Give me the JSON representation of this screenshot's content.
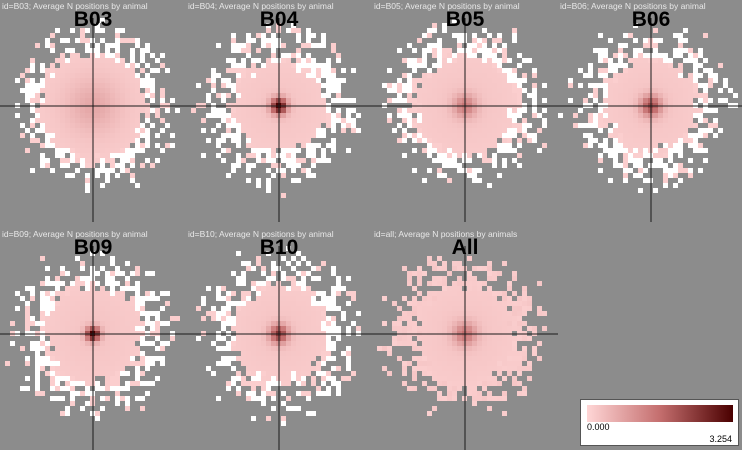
{
  "chart_data": {
    "type": "heatmap",
    "panels": [
      {
        "id": "B03",
        "caption": "id=B03; Average N positions by animal",
        "title": "B03",
        "peak": 0.45,
        "core_radius": 0.66,
        "sigma": 0.22,
        "white_ring": true
      },
      {
        "id": "B04",
        "caption": "id=B04; Average N positions by animal",
        "title": "B04",
        "peak": 3.1,
        "core_radius": 0.56,
        "sigma": 0.07,
        "white_ring": true
      },
      {
        "id": "B05",
        "caption": "id=B05; Average N positions by animal",
        "title": "B05",
        "peak": 1.2,
        "core_radius": 0.62,
        "sigma": 0.1,
        "white_ring": true
      },
      {
        "id": "B06",
        "caption": "id=B06; Average N positions by animal",
        "title": "B06",
        "peak": 1.9,
        "core_radius": 0.57,
        "sigma": 0.09,
        "white_ring": true
      },
      {
        "id": "B09",
        "caption": "id=B09; Average N positions by animal",
        "title": "B09",
        "peak": 3.254,
        "core_radius": 0.6,
        "sigma": 0.06,
        "white_ring": true
      },
      {
        "id": "B10",
        "caption": "id=B10; Average N positions by animal",
        "title": "B10",
        "peak": 2.2,
        "core_radius": 0.58,
        "sigma": 0.08,
        "white_ring": true
      },
      {
        "id": "All",
        "caption": "id=all; Average N positions by animals",
        "title": "All",
        "peak": 1.3,
        "core_radius": 0.6,
        "sigma": 0.1,
        "white_ring": false
      }
    ],
    "color_scale": {
      "min": 0.0,
      "max": 3.254,
      "min_label": "0.000",
      "max_label": "3.254",
      "low_color": "#ffd6d6",
      "high_color": "#4a0000"
    },
    "zero_color": "#ffffff",
    "background": "#8c8c8c",
    "crosshair": true
  }
}
